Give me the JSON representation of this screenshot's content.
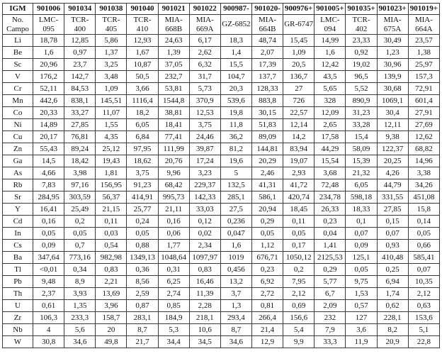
{
  "table": {
    "corner": {
      "row1": "IGM",
      "row2": "No. Campo"
    },
    "columns": [
      {
        "igm": "901006",
        "campo": "LMC-095"
      },
      {
        "igm": "901034",
        "campo": "TCR-400"
      },
      {
        "igm": "901038",
        "campo": "TCR-405"
      },
      {
        "igm": "901040",
        "campo": "TCR-410"
      },
      {
        "igm": "901021",
        "campo": "MIA-668B"
      },
      {
        "igm": "901022",
        "campo": "MIA-669A"
      },
      {
        "igm": "900987-",
        "campo": "GZ-6852"
      },
      {
        "igm": "901020-",
        "campo": "MIA-664B"
      },
      {
        "igm": "900976+",
        "campo": "GR-6747"
      },
      {
        "igm": "901005+",
        "campo": "LMC-094"
      },
      {
        "igm": "901035+",
        "campo": "TCR-402"
      },
      {
        "igm": "901023+",
        "campo": "MIA-675A"
      },
      {
        "igm": "901019+",
        "campo": "MIA-664A"
      }
    ],
    "rows": [
      {
        "element": "Li",
        "values": [
          "18,78",
          "12,85",
          "5,86",
          "12,93",
          "24,63",
          "6,17",
          "18,3",
          "48,74",
          "15,45",
          "14,99",
          "23,33",
          "30,49",
          "23,57"
        ]
      },
      {
        "element": "Be",
        "values": [
          "1,6",
          "0,97",
          "1,37",
          "1,67",
          "1,39",
          "2,62",
          "1,4",
          "2,07",
          "1,09",
          "1,6",
          "0,92",
          "1,23",
          "1,38"
        ]
      },
      {
        "element": "Sc",
        "values": [
          "20,96",
          "23,7",
          "3,25",
          "10,87",
          "37,05",
          "6,32",
          "15,5",
          "17,39",
          "20,5",
          "12,42",
          "19,02",
          "30,96",
          "25,97"
        ]
      },
      {
        "element": "V",
        "values": [
          "176,2",
          "142,7",
          "3,48",
          "50,5",
          "232,7",
          "31,7",
          "104,7",
          "137,7",
          "136,7",
          "43,5",
          "96,5",
          "139,9",
          "157,3"
        ]
      },
      {
        "element": "Cr",
        "values": [
          "52,11",
          "84,53",
          "1,09",
          "3,66",
          "53,81",
          "5,73",
          "20,3",
          "128,33",
          "27",
          "5,65",
          "5,52",
          "30,68",
          "72,91"
        ]
      },
      {
        "element": "Mn",
        "values": [
          "442,6",
          "838,1",
          "145,51",
          "1116,4",
          "1544,8",
          "370,9",
          "539,6",
          "883,8",
          "726",
          "328",
          "890,9",
          "1069,1",
          "601,4"
        ]
      },
      {
        "element": "Co",
        "values": [
          "20,33",
          "33,27",
          "11,07",
          "18,2",
          "38,81",
          "12,53",
          "19,8",
          "30,15",
          "22,57",
          "12,09",
          "31,23",
          "30,4",
          "27,91"
        ]
      },
      {
        "element": "Ni",
        "values": [
          "14,89",
          "27,85",
          "1,55",
          "6,05",
          "18,41",
          "3,75",
          "11,8",
          "51,83",
          "12,14",
          "2,65",
          "33,28",
          "12,11",
          "27,69"
        ]
      },
      {
        "element": "Cu",
        "values": [
          "20,17",
          "76,81",
          "4,35",
          "6,84",
          "77,41",
          "24,46",
          "36,2",
          "89,09",
          "14,2",
          "17,58",
          "15,4",
          "9,38",
          "12,62"
        ]
      },
      {
        "element": "Zn",
        "values": [
          "55,43",
          "89,24",
          "25,12",
          "97,95",
          "111,99",
          "39,87",
          "81,2",
          "144,81",
          "83,94",
          "44,29",
          "58,09",
          "122,37",
          "68,82"
        ]
      },
      {
        "element": "Ga",
        "values": [
          "14,5",
          "18,42",
          "19,43",
          "18,62",
          "20,76",
          "17,24",
          "19,6",
          "20,29",
          "19,07",
          "15,54",
          "15,39",
          "20,25",
          "14,96"
        ]
      },
      {
        "element": "As",
        "values": [
          "4,66",
          "3,98",
          "1,81",
          "3,75",
          "9,96",
          "3,23",
          "5",
          "2,46",
          "2,93",
          "3,68",
          "21,32",
          "4,26",
          "3,38"
        ]
      },
      {
        "element": "Rb",
        "values": [
          "7,83",
          "97,16",
          "156,95",
          "91,23",
          "68,42",
          "229,37",
          "132,5",
          "41,31",
          "41,72",
          "72,48",
          "6,05",
          "44,79",
          "34,26"
        ]
      },
      {
        "element": "Sr",
        "values": [
          "284,95",
          "303,59",
          "56,37",
          "414,91",
          "995,73",
          "142,33",
          "285,1",
          "586,1",
          "420,74",
          "234,78",
          "598,18",
          "331,55",
          "451,08"
        ]
      },
      {
        "element": "Y",
        "values": [
          "16,41",
          "25,49",
          "21,15",
          "25,77",
          "21,11",
          "33,03",
          "27,5",
          "20,94",
          "18,45",
          "26,33",
          "18,33",
          "27,85",
          "15,8"
        ]
      },
      {
        "element": "Cd",
        "values": [
          "0,16",
          "0,2",
          "0,11",
          "0,24",
          "0,16",
          "0,12",
          "0,236",
          "0,29",
          "0,11",
          "0,23",
          "0,1",
          "0,15",
          "0,14"
        ]
      },
      {
        "element": "In",
        "values": [
          "0,05",
          "0,05",
          "0,03",
          "0,05",
          "0,06",
          "0,02",
          "0,047",
          "0,05",
          "0,05",
          "0,04",
          "0,07",
          "0,07",
          "0,05"
        ]
      },
      {
        "element": "Cs",
        "values": [
          "0,09",
          "0,7",
          "0,54",
          "0,88",
          "1,77",
          "2,34",
          "1,6",
          "1,12",
          "0,17",
          "1,41",
          "0,09",
          "0,93",
          "0,66"
        ]
      },
      {
        "element": "Ba",
        "values": [
          "347,64",
          "773,16",
          "982,98",
          "1349,13",
          "1048,64",
          "1097,97",
          "1019",
          "676,71",
          "1050,12",
          "2125,53",
          "125,1",
          "410,48",
          "585,41"
        ]
      },
      {
        "element": "Tl",
        "values": [
          "<0,01",
          "0,34",
          "0,83",
          "0,36",
          "0,31",
          "0,83",
          "0,456",
          "0,23",
          "0,2",
          "0,29",
          "0,05",
          "0,25",
          "0,07"
        ]
      },
      {
        "element": "Pb",
        "values": [
          "9,48",
          "8,9",
          "2,21",
          "8,56",
          "6,25",
          "16,46",
          "13,2",
          "6,92",
          "7,95",
          "5,77",
          "9,75",
          "6,94",
          "10,35"
        ]
      },
      {
        "element": "Th",
        "values": [
          "2,37",
          "3,93",
          "13,69",
          "2,59",
          "2,74",
          "11,39",
          "3,7",
          "2,72",
          "2,12",
          "6,7",
          "1,53",
          "1,74",
          "2,12"
        ]
      },
      {
        "element": "U",
        "values": [
          "0,61",
          "1,35",
          "3,96",
          "0,87",
          "0,85",
          "2,28",
          "1,3",
          "0,81",
          "0,69",
          "2,09",
          "0,57",
          "0,62",
          "0,63"
        ]
      },
      {
        "element": "Zr",
        "values": [
          "106,3",
          "233,3",
          "158,7",
          "283,1",
          "184,9",
          "218,1",
          "293,4",
          "266,4",
          "156,6",
          "232",
          "127",
          "228,1",
          "153,6"
        ]
      },
      {
        "element": "Nb",
        "values": [
          "4",
          "5,6",
          "20",
          "8,7",
          "5,3",
          "10,6",
          "8,7",
          "21,4",
          "5,4",
          "7,9",
          "3,6",
          "8,2",
          "5,1"
        ]
      },
      {
        "element": "W",
        "values": [
          "30,8",
          "34,6",
          "49,8",
          "21,7",
          "34,4",
          "34,5",
          "34,6",
          "12,9",
          "9,9",
          "33,3",
          "11,9",
          "20,9",
          "22,8"
        ]
      }
    ]
  }
}
